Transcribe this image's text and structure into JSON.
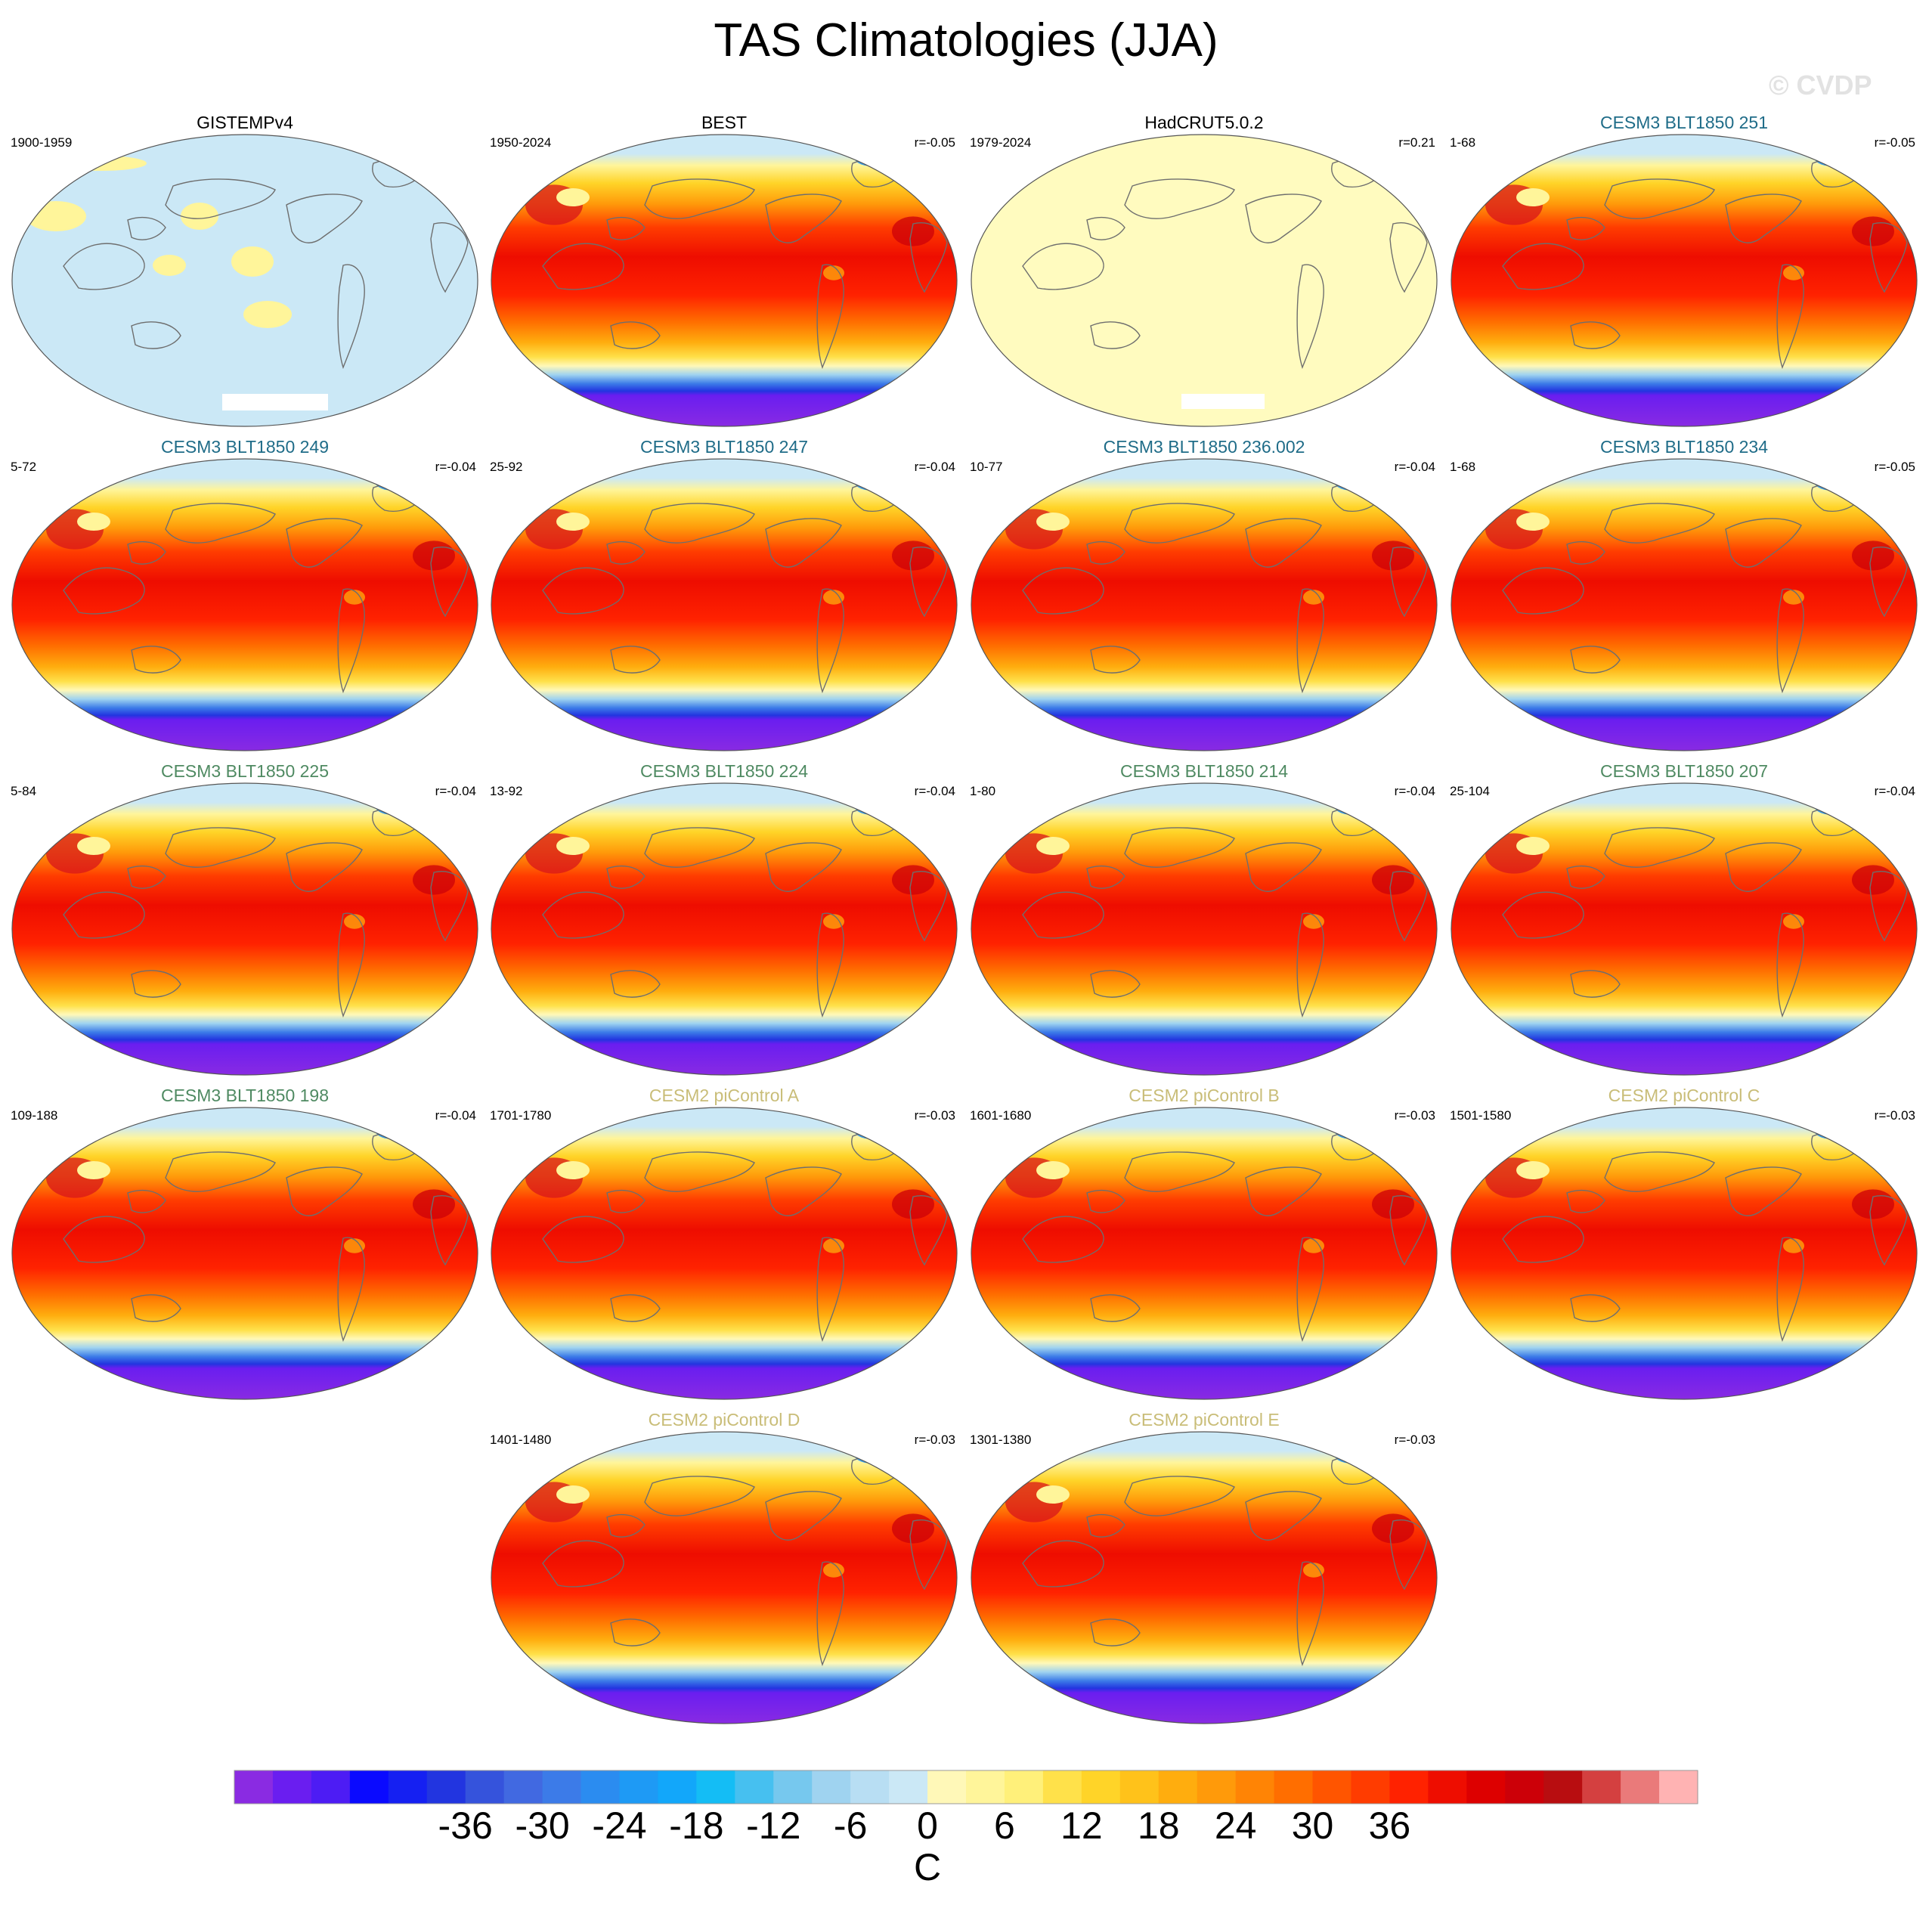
{
  "title": "TAS Climatologies (JJA)",
  "watermark": "© CVDP",
  "colors": {
    "title_obs": "#000000",
    "title_cesm3_teal": "#1f6c88",
    "title_cesm3_green": "#4f8a62",
    "title_cesm2": "#c9bd78",
    "coast": "#6e6e6e"
  },
  "panels": [
    {
      "title": "GISTEMPv4",
      "period": "1900-1959",
      "r": "",
      "group": "obs",
      "style": "gistemp"
    },
    {
      "title": "BEST",
      "period": "1950-2024",
      "r": "r=-0.05",
      "group": "obs",
      "style": "full"
    },
    {
      "title": "HadCRUT5.0.2",
      "period": "1979-2024",
      "r": "r=0.21",
      "group": "obs",
      "style": "hadcrut"
    },
    {
      "title": "CESM3 BLT1850 251",
      "period": "1-68",
      "r": "r=-0.05",
      "group": "cesm3_teal",
      "style": "full"
    },
    {
      "title": "CESM3 BLT1850 249",
      "period": "5-72",
      "r": "r=-0.04",
      "group": "cesm3_teal",
      "style": "full"
    },
    {
      "title": "CESM3 BLT1850 247",
      "period": "25-92",
      "r": "r=-0.04",
      "group": "cesm3_teal",
      "style": "full"
    },
    {
      "title": "CESM3 BLT1850 236.002",
      "period": "10-77",
      "r": "r=-0.04",
      "group": "cesm3_teal",
      "style": "full"
    },
    {
      "title": "CESM3 BLT1850 234",
      "period": "1-68",
      "r": "r=-0.05",
      "group": "cesm3_teal",
      "style": "full"
    },
    {
      "title": "CESM3 BLT1850 225",
      "period": "5-84",
      "r": "r=-0.04",
      "group": "cesm3_green",
      "style": "full"
    },
    {
      "title": "CESM3 BLT1850 224",
      "period": "13-92",
      "r": "r=-0.04",
      "group": "cesm3_green",
      "style": "full"
    },
    {
      "title": "CESM3 BLT1850 214",
      "period": "1-80",
      "r": "r=-0.04",
      "group": "cesm3_green",
      "style": "full"
    },
    {
      "title": "CESM3 BLT1850 207",
      "period": "25-104",
      "r": "r=-0.04",
      "group": "cesm3_green",
      "style": "full"
    },
    {
      "title": "CESM3 BLT1850 198",
      "period": "109-188",
      "r": "r=-0.04",
      "group": "cesm3_green",
      "style": "full"
    },
    {
      "title": "CESM2 piControl A",
      "period": "1701-1780",
      "r": "r=-0.03",
      "group": "cesm2",
      "style": "full"
    },
    {
      "title": "CESM2 piControl B",
      "period": "1601-1680",
      "r": "r=-0.03",
      "group": "cesm2",
      "style": "full"
    },
    {
      "title": "CESM2 piControl C",
      "period": "1501-1580",
      "r": "r=-0.03",
      "group": "cesm2",
      "style": "full"
    },
    {
      "title": "CESM2 piControl D",
      "period": "1401-1480",
      "r": "r=-0.03",
      "group": "cesm2",
      "style": "full"
    },
    {
      "title": "CESM2 piControl E",
      "period": "1301-1380",
      "r": "r=-0.03",
      "group": "cesm2",
      "style": "full"
    }
  ],
  "colorbar": {
    "unit": "C",
    "tick_labels": [
      "-36",
      "-30",
      "-24",
      "-18",
      "-12",
      "-6",
      "0",
      "6",
      "12",
      "18",
      "24",
      "30",
      "36"
    ],
    "levels": [
      -42,
      -39,
      -36,
      -33,
      -30,
      -27,
      -24,
      -21,
      -18,
      -15,
      -12,
      -9,
      -6,
      -3,
      0,
      3,
      6,
      9,
      12,
      15,
      18,
      21,
      24,
      27,
      30,
      33,
      36,
      39,
      42
    ],
    "colors": [
      "#8a2be2",
      "#6a1ef0",
      "#4d1cf4",
      "#0a0aff",
      "#1520f2",
      "#2235e0",
      "#3553dc",
      "#4169e1",
      "#3c7be8",
      "#2b8cf0",
      "#1e9af5",
      "#12a7fa",
      "#14bdf5",
      "#46c0f0",
      "#76c8ee",
      "#9fd3f0",
      "#b8def3",
      "#cbe8f6",
      "#fff8b8",
      "#fff59a",
      "#fff07a",
      "#ffe14a",
      "#ffd428",
      "#ffc21a",
      "#ffad0e",
      "#ff9a0a",
      "#ff8405",
      "#ff6e00",
      "#ff5500",
      "#ff3c00",
      "#ff2200",
      "#ee0d00",
      "#dd0000",
      "#cc0008",
      "#b80d10",
      "#d44040",
      "#ea7a7a",
      "#ffb3b3"
    ]
  }
}
